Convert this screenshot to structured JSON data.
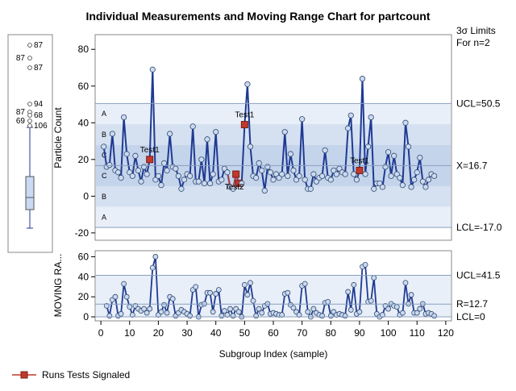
{
  "chart_data": {
    "type": "line",
    "title": "Individual Measurements and Moving Range Chart for partcount",
    "sigma_label_1": "3σ Limits",
    "sigma_label_2": "For n=2",
    "xlabel": "Subgroup Index (sample)",
    "x_ticks": [
      0,
      10,
      20,
      30,
      40,
      50,
      60,
      70,
      80,
      90,
      100,
      110,
      120
    ],
    "xlim": [
      -2,
      122
    ],
    "individuals": {
      "ylabel": "Particle Count",
      "ylim": [
        -24,
        88
      ],
      "y_ticks": [
        -20,
        0,
        20,
        40,
        60,
        80
      ],
      "ucl": 50.5,
      "center": 16.7,
      "lcl": -17.0,
      "ucl_label": "UCL=50.5",
      "center_label": "X=16.7",
      "lcl_label": "LCL=-17.0",
      "zone_labels": [
        "A",
        "B",
        "C",
        "C",
        "B",
        "A"
      ],
      "values": [
        27,
        16,
        17,
        34,
        14,
        13,
        10,
        43,
        23,
        13,
        11,
        22,
        14,
        8,
        16,
        12,
        20,
        69,
        9,
        11,
        6,
        18,
        14,
        34,
        16,
        15,
        11,
        4,
        9,
        12,
        11,
        38,
        8,
        8,
        20,
        7,
        31,
        7,
        12,
        35,
        8,
        9,
        15,
        13,
        5,
        4,
        12,
        7,
        7,
        39,
        61,
        27,
        11,
        10,
        18,
        14,
        3,
        16,
        13,
        9,
        12,
        10,
        12,
        35,
        11,
        23,
        14,
        9,
        11,
        42,
        9,
        4,
        4,
        12,
        8,
        10,
        11,
        25,
        10,
        9,
        14,
        12,
        15,
        13,
        12,
        37,
        44,
        12,
        9,
        14,
        64,
        12,
        27,
        43,
        4,
        7,
        7,
        5,
        16,
        24,
        11,
        22,
        12,
        10,
        6,
        40,
        27,
        5,
        9,
        13,
        21,
        8,
        5,
        9,
        12,
        11
      ]
    },
    "moving_range": {
      "ylabel": "MOVING RA...",
      "ylim": [
        -4,
        66
      ],
      "y_ticks": [
        0,
        20,
        40,
        60
      ],
      "ucl": 41.5,
      "center": 12.7,
      "lcl": 0,
      "ucl_label": "UCL=41.5",
      "center_label": "R=12.7",
      "lcl_label": "LCL=0"
    },
    "runs_tests": [
      {
        "x": 17,
        "label": "Test1"
      },
      {
        "x": 50,
        "label": "Test1"
      },
      {
        "x": 90,
        "label": "Test1"
      },
      {
        "x": 47,
        "label": "Test2"
      }
    ],
    "box_plot": {
      "outlier_labels": [
        {
          "side": "right",
          "text": "87"
        },
        {
          "side": "left",
          "text": "87"
        },
        {
          "side": "right",
          "text": "87"
        },
        {
          "side": "left",
          "text": "87"
        },
        {
          "side": "right",
          "text": "94"
        },
        {
          "side": "right",
          "text": "68"
        },
        {
          "side": "left",
          "text": "69"
        },
        {
          "side": "right",
          "text": "106"
        }
      ]
    },
    "legend": {
      "label": "Runs Tests Signaled",
      "color": "#c0392b",
      "position": "bottom-left"
    },
    "colors": {
      "line": "#1f3a93",
      "marker_fill": "#c9daf2",
      "zone_outer": "#e8eff8",
      "zone_mid": "#d5e1f1",
      "zone_inner": "#c4d4eb",
      "run_line": "#c0392b"
    }
  }
}
